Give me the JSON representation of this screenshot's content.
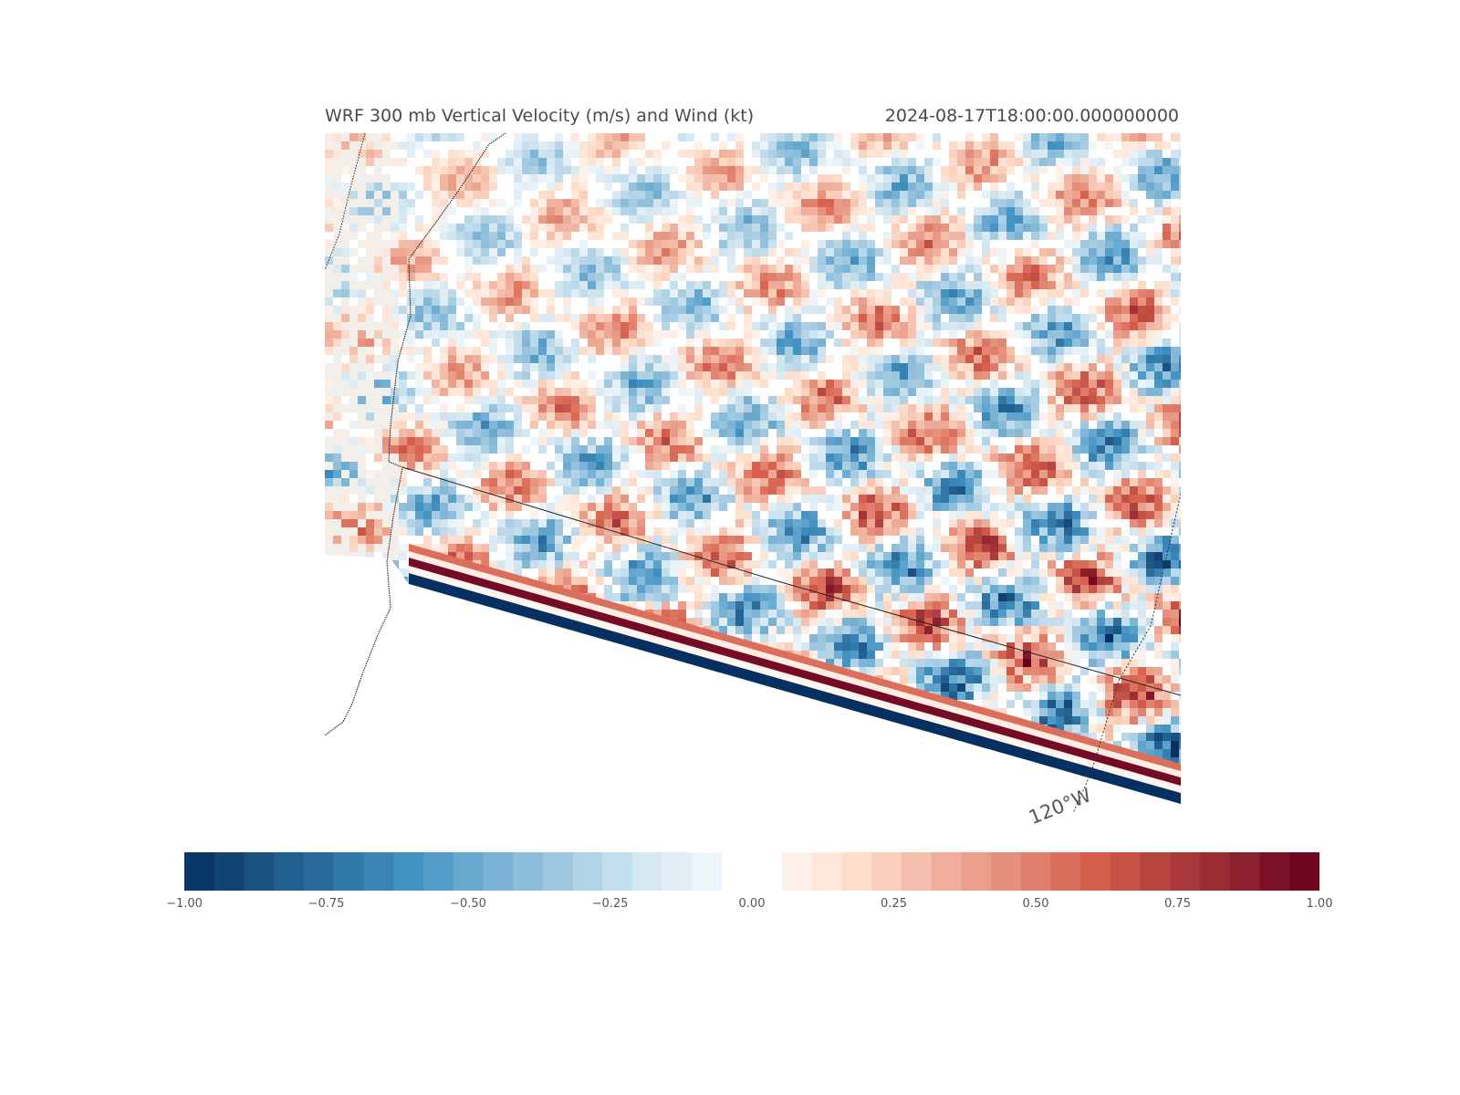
{
  "title": {
    "left": "WRF 300 mb Vertical Velocity (m/s) and Wind (kt)",
    "right": "2024-08-17T18:00:00.000000000"
  },
  "map": {
    "field": "vertical velocity",
    "colormap": "RdBu_r",
    "colors": {
      "neg_strong": "#053061",
      "neg_mid": "#4393c3",
      "neg_weak": "#d1e5f0",
      "zero": "#ffffff",
      "pos_weak": "#fddbc7",
      "pos_mid": "#d6604d",
      "pos_strong": "#67001f",
      "land_mask": "#f2eeea",
      "boundary": "#222222"
    },
    "longitude_label": "120°W"
  },
  "colorbar": {
    "min": -1.0,
    "max": 1.0,
    "levels": 38,
    "tick_labels": [
      "−1.00",
      "−0.75",
      "−0.50",
      "−0.25",
      "0.00",
      "0.25",
      "0.50",
      "0.75",
      "1.00"
    ],
    "tick_values": [
      -1.0,
      -0.75,
      -0.5,
      -0.25,
      0.0,
      0.25,
      0.5,
      0.75,
      1.0
    ]
  }
}
